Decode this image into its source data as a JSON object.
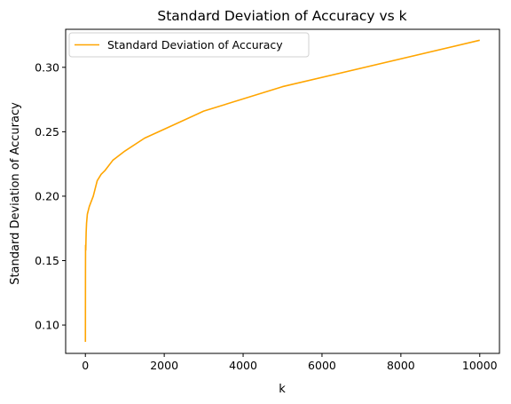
{
  "chart_data": {
    "type": "line",
    "title": "Standard Deviation of Accuracy vs k",
    "xlabel": "k",
    "ylabel": "Standard Deviation of Accuracy",
    "xlim": [
      -500,
      10500
    ],
    "ylim": [
      0.078,
      0.3295
    ],
    "xticks": [
      0,
      2000,
      4000,
      6000,
      8000,
      10000
    ],
    "xtick_labels": [
      "0",
      "2000",
      "4000",
      "6000",
      "8000",
      "10000"
    ],
    "yticks": [
      0.1,
      0.15,
      0.2,
      0.25,
      0.3
    ],
    "ytick_labels": [
      "0.10",
      "0.15",
      "0.20",
      "0.25",
      "0.30"
    ],
    "grid": false,
    "legend_position": "top-left",
    "series": [
      {
        "name": "Standard Deviation of Accuracy",
        "color": "#ffa500",
        "x": [
          1,
          2,
          3,
          5,
          10,
          20,
          30,
          50,
          100,
          200,
          300,
          400,
          500,
          700,
          1000,
          1500,
          2000,
          3000,
          5000,
          10000
        ],
        "y": [
          0.087,
          0.12,
          0.14,
          0.162,
          0.158,
          0.172,
          0.179,
          0.186,
          0.192,
          0.2,
          0.212,
          0.217,
          0.22,
          0.228,
          0.235,
          0.245,
          0.252,
          0.266,
          0.285,
          0.321
        ]
      }
    ]
  }
}
